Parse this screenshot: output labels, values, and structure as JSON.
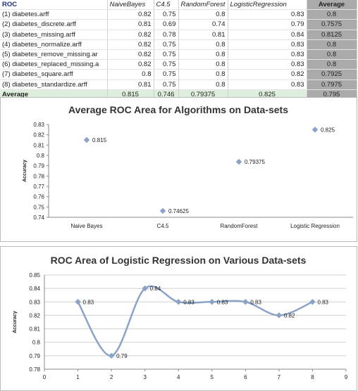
{
  "table": {
    "corner": "ROC",
    "headers": [
      "NaiveBayes",
      "C4.5",
      "RandomForest",
      "LogisticRegression"
    ],
    "avg_header": "Average",
    "rows": [
      {
        "name": "(1) diabetes.arff",
        "vals": [
          "0.82",
          "0.75",
          "0.8",
          "0.83"
        ],
        "avg": "0.8"
      },
      {
        "name": "(2) diabetes_discrete.arff",
        "vals": [
          "0.81",
          "0.69",
          "0.74",
          "0.79"
        ],
        "avg": "0.7575"
      },
      {
        "name": "(3) diabetes_missing.arff",
        "vals": [
          "0.82",
          "0.78",
          "0.81",
          "0.84"
        ],
        "avg": "0.8125"
      },
      {
        "name": "(4) diabetes_normalize.arff",
        "vals": [
          "0.82",
          "0.75",
          "0.8",
          "0.83"
        ],
        "avg": "0.8"
      },
      {
        "name": "(5) diabetes_remove_missing.ar",
        "vals": [
          "0.82",
          "0.75",
          "0.8",
          "0.83"
        ],
        "avg": "0.8"
      },
      {
        "name": "(6) diabetes_replaced_missing.a",
        "vals": [
          "0.82",
          "0.75",
          "0.8",
          "0.83"
        ],
        "avg": "0.8"
      },
      {
        "name": "(7) diabetes_square.arff",
        "vals": [
          "0.8",
          "0.75",
          "0.8",
          "0.82"
        ],
        "avg": "0.7925"
      },
      {
        "name": "(8) diabetes_standardize.arff",
        "vals": [
          "0.81",
          "0.75",
          "0.8",
          "0.83"
        ],
        "avg": "0.7975"
      }
    ],
    "avg_row": {
      "name": "Average",
      "vals": [
        "0.815",
        "0.746",
        "0.79375",
        "0.825"
      ],
      "avg": "0.795"
    }
  },
  "chart_data": [
    {
      "type": "scatter",
      "title": "Average ROC Area for Algorithms on Data-sets",
      "ylabel": "Accuracy",
      "xlabel": "",
      "categories": [
        "Naive Bayes",
        "C4.5",
        "RandomForest",
        "Logistic Regression"
      ],
      "values": [
        0.815,
        0.74625,
        0.79375,
        0.825
      ],
      "labels": [
        "0.815",
        "0.74625",
        "0.79375",
        "0.825"
      ],
      "ylim": [
        0.74,
        0.83
      ],
      "yticks": [
        "0.74",
        "0.75",
        "0.76",
        "0.77",
        "0.78",
        "0.79",
        "0.8",
        "0.81",
        "0.82",
        "0.83"
      ],
      "grid": false,
      "marker_color": "#8ba3c7"
    },
    {
      "type": "line",
      "title": "ROC Area of Logistic Regression on Various Data-sets",
      "ylabel": "Accuracy",
      "xlabel": "",
      "x": [
        1,
        2,
        3,
        4,
        5,
        6,
        7,
        8
      ],
      "values": [
        0.83,
        0.79,
        0.84,
        0.83,
        0.83,
        0.83,
        0.82,
        0.83
      ],
      "labels": [
        "0.83",
        "0.79",
        "0.84",
        "0.83",
        "0.83",
        "0.83",
        "0.82",
        "0.83"
      ],
      "xlim": [
        0,
        9
      ],
      "xticks": [
        "0",
        "1",
        "2",
        "3",
        "4",
        "5",
        "6",
        "7",
        "8",
        "9"
      ],
      "ylim": [
        0.78,
        0.85
      ],
      "yticks": [
        "0.78",
        "0.79",
        "0.8",
        "0.81",
        "0.82",
        "0.83",
        "0.84",
        "0.85"
      ],
      "grid": true,
      "smooth": true,
      "line_color": "#8ba3c7",
      "marker_color": "#8ba3c7"
    }
  ]
}
